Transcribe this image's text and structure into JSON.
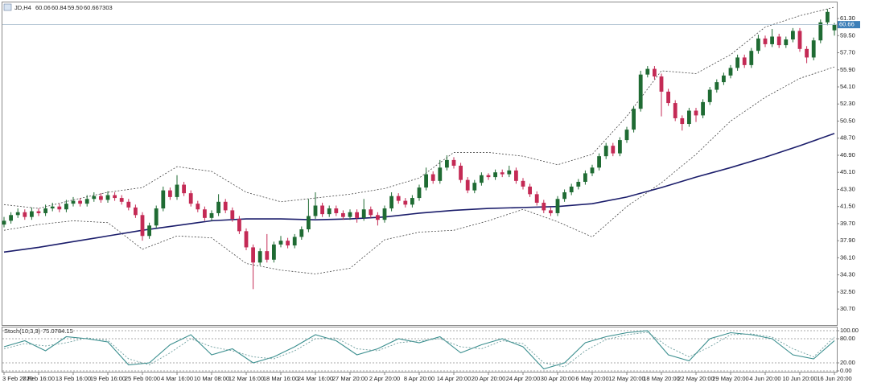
{
  "header": {
    "symbol": "JD,H4",
    "open": "60.06",
    "high": "60.84",
    "low": "59.50",
    "close": "60.66",
    "volume": "7303"
  },
  "chart_data": [
    {
      "type": "candlestick",
      "categories": [
        "3 Feb 2020",
        null,
        null,
        null,
        null,
        "7 Feb 16:00",
        null,
        null,
        null,
        null,
        "13 Feb 16:00",
        null,
        null,
        null,
        null,
        "19 Feb 16:00",
        null,
        null,
        null,
        null,
        "25 Feb 00:00",
        null,
        null,
        null,
        null,
        "4 Mar 16:00",
        null,
        null,
        null,
        null,
        "10 Mar 08:00",
        null,
        null,
        null,
        null,
        "12 Mar 16:00",
        null,
        null,
        null,
        null,
        "18 Mar 16:00",
        null,
        null,
        null,
        null,
        "24 Mar 16:00",
        null,
        null,
        null,
        null,
        "27 Mar 20:00",
        null,
        null,
        null,
        null,
        "2 Apr 20:00",
        null,
        null,
        null,
        null,
        "8 Apr 20:00",
        null,
        null,
        null,
        null,
        "14 Apr 20:00",
        null,
        null,
        null,
        null,
        "20 Apr 20:00",
        null,
        null,
        null,
        null,
        "24 Apr 20:00",
        null,
        null,
        null,
        null,
        "30 Apr 20:00",
        null,
        null,
        null,
        null,
        "6 May 20:00",
        null,
        null,
        null,
        null,
        "12 May 20:00",
        null,
        null,
        null,
        null,
        "18 May 20:00",
        null,
        null,
        null,
        null,
        "22 May 20:00",
        null,
        null,
        null,
        null,
        "29 May 20:00",
        null,
        null,
        null,
        null,
        "4 Jun 20:00",
        null,
        null,
        null,
        null,
        "10 Jun 20:00",
        null,
        null,
        null,
        null,
        "16 Jun 20:00"
      ],
      "open": [
        39.6,
        40.0,
        40.6,
        40.9,
        40.4,
        41.0,
        40.8,
        41.3,
        41.5,
        41.2,
        41.8,
        42.1,
        41.8,
        42.3,
        42.6,
        42.2,
        42.7,
        42.4,
        42.0,
        41.4,
        40.6,
        38.4,
        39.5,
        41.3,
        43.2,
        42.5,
        43.8,
        42.9,
        41.8,
        41.2,
        40.3,
        40.8,
        42.0,
        41.1,
        40.2,
        38.9,
        37.2,
        35.6,
        36.8,
        35.9,
        37.5,
        37.9,
        37.4,
        38.3,
        39.1,
        40.5,
        41.6,
        40.7,
        41.3,
        40.8,
        40.4,
        40.9,
        40.3,
        41.2,
        40.6,
        40.1,
        41.3,
        42.6,
        42.1,
        41.7,
        42.4,
        43.5,
        44.9,
        44.2,
        45.6,
        46.4,
        45.8,
        44.3,
        43.2,
        44.0,
        44.8,
        44.6,
        45.1,
        44.9,
        45.3,
        44.2,
        43.6,
        42.8,
        41.9,
        41.1,
        40.8,
        42.3,
        43.0,
        43.6,
        44.1,
        45.0,
        45.6,
        46.8,
        47.9,
        47.1,
        48.5,
        49.6,
        51.8,
        55.4,
        56.0,
        55.2,
        53.6,
        52.4,
        50.8,
        50.2,
        51.6,
        51.1,
        52.5,
        53.8,
        54.6,
        55.3,
        56.1,
        57.2,
        56.4,
        57.9,
        59.2,
        58.6,
        59.4,
        58.5,
        59.1,
        60.0,
        58.1,
        57.2,
        59.0,
        60.9,
        60.06
      ],
      "high": [
        40.4,
        40.9,
        41.3,
        41.2,
        41.4,
        41.3,
        41.7,
        41.9,
        41.8,
        42.2,
        42.5,
        42.4,
        42.7,
        43.0,
        42.9,
        43.1,
        43.0,
        42.7,
        42.3,
        41.7,
        40.9,
        39.8,
        41.6,
        43.6,
        43.5,
        44.8,
        44.1,
        43.2,
        42.1,
        41.5,
        41.1,
        42.8,
        42.3,
        41.4,
        40.5,
        39.2,
        37.5,
        37.1,
        38.6,
        37.8,
        38.4,
        38.2,
        38.6,
        39.4,
        42.3,
        43.0,
        41.9,
        41.6,
        41.6,
        41.1,
        41.2,
        41.2,
        42.3,
        41.5,
        40.9,
        41.6,
        43.0,
        42.9,
        42.4,
        42.7,
        43.8,
        45.6,
        45.2,
        46.4,
        46.9,
        46.7,
        46.1,
        44.6,
        44.3,
        45.1,
        45.0,
        45.4,
        45.4,
        45.8,
        45.6,
        44.5,
        43.9,
        43.1,
        42.2,
        41.4,
        42.6,
        43.3,
        43.9,
        44.4,
        45.3,
        45.9,
        47.1,
        48.2,
        48.2,
        48.8,
        49.9,
        52.1,
        55.8,
        56.3,
        56.3,
        55.5,
        53.9,
        52.7,
        51.1,
        51.9,
        51.9,
        52.8,
        54.1,
        54.9,
        55.6,
        56.4,
        57.5,
        57.5,
        58.2,
        59.6,
        59.5,
        60.2,
        59.7,
        59.4,
        60.3,
        60.3,
        58.4,
        59.3,
        61.2,
        62.3,
        60.84
      ],
      "low": [
        39.3,
        39.7,
        40.3,
        40.1,
        40.1,
        40.5,
        40.5,
        41.0,
        40.9,
        40.9,
        41.5,
        41.5,
        41.5,
        42.0,
        41.9,
        41.9,
        42.1,
        41.7,
        41.1,
        40.3,
        37.9,
        38.1,
        39.2,
        41.0,
        42.2,
        42.2,
        42.6,
        41.5,
        40.9,
        40.0,
        40.0,
        40.5,
        40.8,
        39.9,
        38.6,
        36.9,
        32.8,
        35.3,
        35.6,
        35.6,
        37.2,
        37.1,
        37.1,
        38.0,
        38.8,
        40.2,
        40.4,
        40.4,
        40.5,
        40.1,
        40.1,
        39.8,
        40.0,
        40.3,
        39.5,
        39.8,
        41.0,
        41.8,
        41.4,
        41.4,
        42.1,
        43.2,
        43.9,
        43.9,
        45.3,
        45.5,
        44.0,
        42.9,
        42.9,
        43.7,
        44.3,
        44.3,
        44.6,
        44.6,
        43.9,
        43.3,
        42.5,
        41.6,
        40.8,
        40.5,
        40.5,
        42.0,
        42.7,
        43.3,
        43.8,
        44.7,
        45.3,
        46.5,
        46.8,
        46.8,
        48.2,
        49.3,
        51.5,
        55.1,
        54.9,
        51.0,
        52.1,
        50.5,
        49.5,
        49.9,
        50.4,
        50.8,
        52.2,
        53.5,
        54.3,
        55.0,
        55.8,
        56.1,
        56.1,
        57.6,
        58.3,
        58.3,
        58.2,
        58.2,
        58.8,
        57.8,
        56.6,
        56.9,
        58.7,
        60.6,
        59.5
      ],
      "close": [
        40.0,
        40.6,
        40.9,
        40.4,
        41.0,
        40.8,
        41.3,
        41.5,
        41.2,
        41.8,
        42.1,
        41.8,
        42.3,
        42.6,
        42.2,
        42.7,
        42.4,
        42.0,
        41.4,
        40.6,
        38.4,
        39.5,
        41.3,
        43.2,
        42.5,
        43.8,
        42.9,
        41.8,
        41.2,
        40.3,
        40.8,
        42.0,
        41.1,
        40.2,
        38.9,
        37.2,
        35.6,
        36.8,
        35.9,
        37.5,
        37.9,
        37.4,
        38.3,
        39.1,
        40.5,
        41.6,
        40.7,
        41.3,
        40.8,
        40.4,
        40.9,
        40.3,
        41.2,
        40.6,
        40.1,
        41.3,
        42.6,
        42.1,
        41.7,
        42.4,
        43.5,
        44.9,
        44.2,
        45.6,
        46.4,
        45.8,
        44.3,
        43.2,
        44.0,
        44.8,
        44.6,
        45.1,
        44.9,
        45.3,
        44.2,
        43.6,
        42.8,
        41.9,
        41.1,
        40.8,
        42.3,
        43.0,
        43.6,
        44.1,
        45.0,
        45.6,
        46.8,
        47.9,
        47.1,
        48.5,
        49.6,
        51.8,
        55.4,
        56.0,
        55.2,
        53.6,
        52.4,
        50.8,
        50.2,
        51.6,
        51.1,
        52.5,
        53.8,
        54.6,
        55.3,
        56.1,
        57.2,
        56.4,
        57.9,
        59.2,
        58.6,
        59.4,
        58.5,
        59.1,
        60.0,
        58.1,
        57.2,
        59.0,
        60.9,
        62.0,
        60.66
      ],
      "up_color": "#1f6b33",
      "down_color": "#c42a55",
      "overlays": [
        {
          "x": [
            0,
            5,
            10,
            15,
            20,
            25,
            30,
            35,
            40,
            45,
            50,
            55,
            60,
            65,
            70,
            75,
            80,
            85,
            90,
            95,
            100,
            105,
            110,
            115,
            120
          ],
          "values": [
            41.7,
            41.3,
            42.2,
            43.0,
            43.5,
            45.7,
            45.2,
            43.0,
            42.0,
            42.4,
            42.8,
            43.4,
            44.5,
            47.2,
            47.2,
            46.8,
            45.9,
            47.0,
            51.0,
            55.8,
            55.5,
            57.5,
            60.4,
            61.6,
            62.5
          ],
          "color": "#444444",
          "style": "dotted"
        },
        {
          "x": [
            0,
            5,
            10,
            15,
            20,
            25,
            30,
            35,
            40,
            45,
            50,
            55,
            60,
            65,
            70,
            75,
            80,
            85,
            90,
            95,
            100,
            105,
            110,
            115,
            120
          ],
          "values": [
            39.0,
            39.6,
            40.0,
            39.8,
            37.0,
            38.4,
            38.2,
            35.5,
            34.8,
            34.4,
            35.0,
            38.0,
            38.8,
            39.0,
            40.0,
            41.2,
            39.9,
            38.3,
            41.5,
            44.0,
            47.0,
            50.5,
            53.0,
            55.0,
            56.2
          ],
          "color": "#444444",
          "style": "dotted"
        },
        {
          "x": [
            0,
            5,
            10,
            15,
            20,
            25,
            30,
            35,
            40,
            45,
            50,
            55,
            60,
            65,
            70,
            75,
            80,
            85,
            90,
            95,
            100,
            105,
            110,
            115,
            120
          ],
          "values": [
            36.7,
            37.2,
            37.8,
            38.4,
            39.0,
            39.5,
            40.0,
            40.2,
            40.2,
            40.1,
            40.2,
            40.4,
            40.8,
            41.1,
            41.3,
            41.4,
            41.5,
            41.8,
            42.5,
            43.5,
            44.6,
            45.6,
            46.7,
            47.9,
            49.2
          ],
          "color": "#1b1d6b",
          "style": "solid"
        }
      ],
      "ylim": [
        29.1,
        63.0
      ],
      "yticks": [
        {
          "value": 61.3,
          "label": "61.30"
        },
        {
          "value": 59.5,
          "label": "59.50"
        },
        {
          "value": 57.7,
          "label": "57.70"
        },
        {
          "value": 55.9,
          "label": "55.90"
        },
        {
          "value": 54.1,
          "label": "54.10"
        },
        {
          "value": 52.3,
          "label": "52.30"
        },
        {
          "value": 50.5,
          "label": "50.50"
        },
        {
          "value": 48.7,
          "label": "48.70"
        },
        {
          "value": 46.9,
          "label": "46.90"
        },
        {
          "value": 45.1,
          "label": "45.10"
        },
        {
          "value": 43.3,
          "label": "43.30"
        },
        {
          "value": 41.5,
          "label": "41.50"
        },
        {
          "value": 39.7,
          "label": "39.70"
        },
        {
          "value": 37.9,
          "label": "37.90"
        },
        {
          "value": 36.1,
          "label": "36.10"
        },
        {
          "value": 34.3,
          "label": "34.30"
        },
        {
          "value": 32.5,
          "label": "32.50"
        },
        {
          "value": 30.7,
          "label": "30.70"
        }
      ],
      "price_line_color": "#9fb6c8",
      "price_label_color": "#3d7fb8"
    },
    {
      "type": "line",
      "title": "Stoch(10,3,3)",
      "x": [
        0,
        3,
        6,
        9,
        12,
        15,
        18,
        21,
        24,
        27,
        30,
        33,
        36,
        39,
        42,
        45,
        48,
        51,
        54,
        57,
        60,
        63,
        66,
        69,
        72,
        75,
        78,
        81,
        84,
        87,
        90,
        93,
        96,
        99,
        102,
        105,
        108,
        111,
        114,
        117,
        120
      ],
      "series": [
        {
          "values": [
            60,
            75,
            50,
            85,
            80,
            72,
            15,
            20,
            65,
            90,
            40,
            55,
            20,
            35,
            60,
            90,
            75,
            40,
            55,
            80,
            70,
            85,
            45,
            65,
            80,
            60,
            5,
            20,
            70,
            85,
            95,
            100,
            40,
            25,
            80,
            95,
            90,
            80,
            40,
            30,
            75.07
          ],
          "color": "#3b8f8f",
          "style": "solid"
        },
        {
          "values": [
            55,
            68,
            62,
            70,
            82,
            76,
            30,
            15,
            45,
            80,
            60,
            50,
            35,
            30,
            50,
            80,
            82,
            55,
            50,
            70,
            75,
            80,
            60,
            55,
            75,
            68,
            20,
            10,
            50,
            78,
            90,
            96,
            60,
            35,
            60,
            90,
            92,
            84,
            55,
            35,
            84.15
          ],
          "color": "#6f9f9f",
          "style": "dotted"
        }
      ],
      "ylim": [
        0,
        100
      ],
      "yticks": [
        {
          "value": 100,
          "label": "100.00"
        },
        {
          "value": 80,
          "label": "80.00"
        },
        {
          "value": 20,
          "label": "20.00"
        },
        {
          "value": 0,
          "label": "0.00"
        }
      ]
    }
  ]
}
